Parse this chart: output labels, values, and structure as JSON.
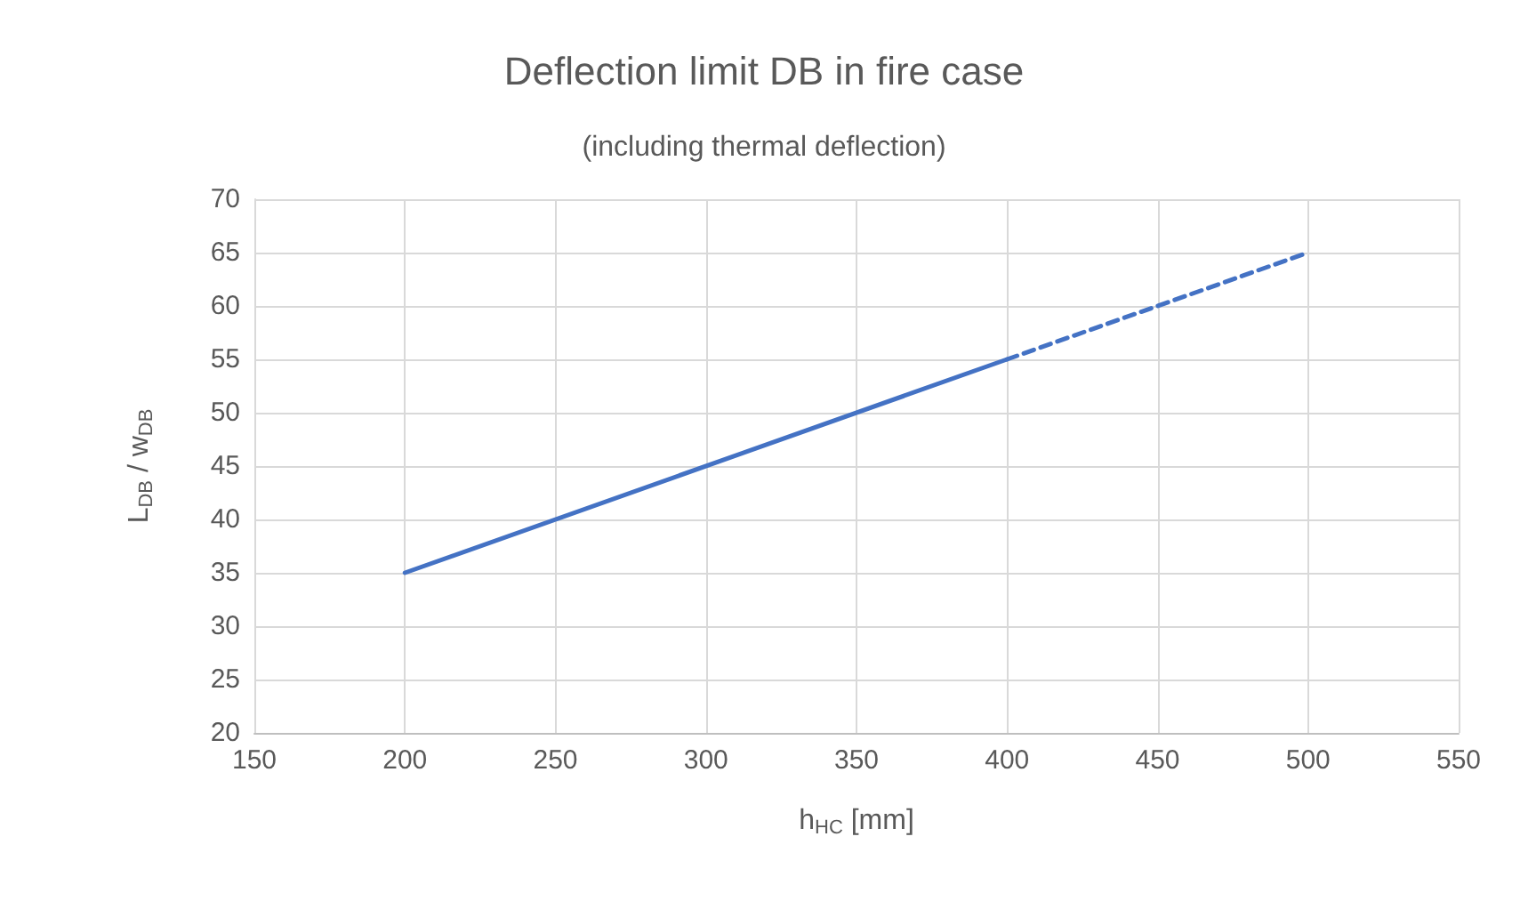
{
  "chart_data": {
    "type": "line",
    "title": "Deflection limit DB in fire case",
    "subtitle": "(including thermal deflection)",
    "xlabel": "h$_{HC}$ [mm]",
    "ylabel": "L$_{DB}$ / w$_{DB}$",
    "series": [
      {
        "color": "#4472c4",
        "x": [
          200,
          400
        ],
        "values": [
          35,
          55
        ],
        "line_style": "solid"
      },
      {
        "color": "#4472c4",
        "x": [
          400,
          500
        ],
        "values": [
          55,
          65
        ],
        "line_style": "dashed"
      }
    ],
    "xlim": [
      150,
      550
    ],
    "xticks": [
      150,
      200,
      250,
      300,
      350,
      400,
      450,
      500,
      550
    ],
    "ylim": [
      20,
      70
    ],
    "yticks": [
      20,
      25,
      30,
      35,
      40,
      45,
      50,
      55,
      60,
      65,
      70
    ],
    "grid": true,
    "marker": "none"
  }
}
